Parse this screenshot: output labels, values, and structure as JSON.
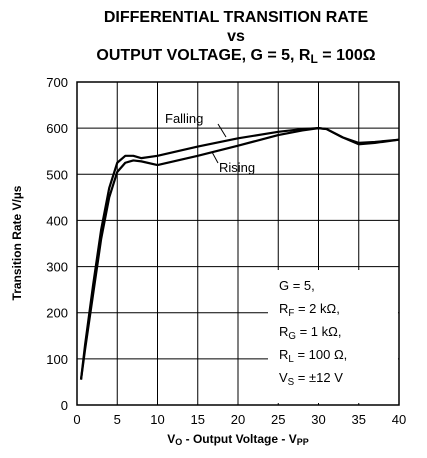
{
  "chart_data": {
    "type": "line",
    "title": [
      [
        "DIFFERENTIAL TRANSITION RATE"
      ],
      [
        "vs"
      ],
      [
        "OUTPUT VOLTAGE, G = 5, R",
        {
          "sub": "L"
        },
        " = 100Ω"
      ]
    ],
    "x_label": [
      "V",
      {
        "sub": "O"
      },
      " - Output Voltage - V",
      {
        "sub": "PP"
      }
    ],
    "y_label": "Transition Rate V/µs",
    "x": [
      0.5,
      1,
      2,
      3,
      4,
      5,
      6,
      7,
      8,
      10,
      15,
      20,
      25,
      28,
      30,
      31,
      33,
      35,
      37,
      40
    ],
    "series": [
      {
        "name": "Falling",
        "color": "#000000",
        "values": [
          55,
          130,
          260,
          380,
          470,
          525,
          540,
          540,
          535,
          540,
          560,
          578,
          592,
          598,
          600,
          598,
          580,
          568,
          570,
          575
        ]
      },
      {
        "name": "Rising",
        "color": "#000000",
        "values": [
          55,
          120,
          240,
          360,
          450,
          505,
          525,
          530,
          528,
          520,
          540,
          562,
          585,
          595,
          600,
          598,
          580,
          565,
          568,
          575
        ]
      }
    ],
    "conditions": [
      [
        "G = 5,"
      ],
      [
        "R",
        {
          "sub": "F"
        },
        " = 2 kΩ,"
      ],
      [
        "R",
        {
          "sub": "G"
        },
        " = 1 kΩ,"
      ],
      [
        "R",
        {
          "sub": "L"
        },
        " = 100 Ω,"
      ],
      [
        "V",
        {
          "sub": "S"
        },
        " = ±12 V"
      ]
    ],
    "xlim": [
      0,
      40
    ],
    "ylim": [
      0,
      700
    ],
    "xticks": [
      0,
      5,
      10,
      15,
      20,
      25,
      30,
      35,
      40
    ],
    "yticks": [
      0,
      100,
      200,
      300,
      400,
      500,
      600,
      700
    ],
    "grid": true
  }
}
